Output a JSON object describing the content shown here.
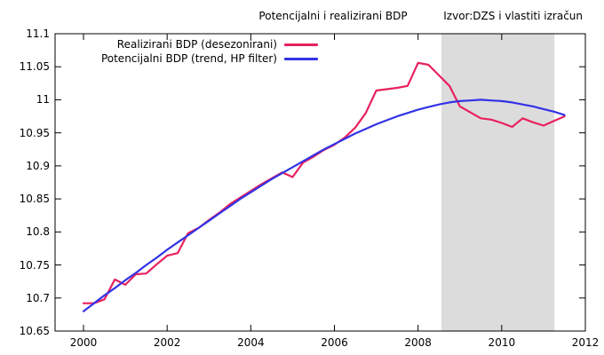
{
  "header": {
    "title": "Potencijalni i realizirani BDP",
    "source": "Izvor:DZS i vlastiti izračun"
  },
  "colors": {
    "background": "#ffffff",
    "axis": "#000000",
    "band": "#dcdcdc",
    "realized": "#e8215d",
    "potential": "#3232e6"
  },
  "chart_data": {
    "type": "line",
    "title": "Potencijalni i realizirani BDP",
    "source_note": "Izvor:DZS i vlastiti izračun",
    "xlabel": "",
    "ylabel": "",
    "grid": false,
    "legend_position": "inside-top-left",
    "xlim": [
      1999.32,
      2012
    ],
    "ylim": [
      10.65,
      11.1
    ],
    "x_ticks": [
      2000,
      2002,
      2004,
      2006,
      2008,
      2010,
      2012
    ],
    "x_tick_labels": [
      "2000",
      "2002",
      "2004",
      "2006",
      "2008",
      "2010",
      "2012"
    ],
    "y_ticks": [
      10.65,
      10.7,
      10.75,
      10.8,
      10.85,
      10.9,
      10.95,
      11,
      11.05,
      11.1
    ],
    "y_tick_labels": [
      "10.65",
      "10.7",
      "10.75",
      "10.8",
      "10.85",
      "10.9",
      "10.95",
      "11",
      "11.05",
      "11.1"
    ],
    "shaded_region": {
      "x_start": 2008.56,
      "x_end": 2011.26,
      "color": "#dcdcdc"
    },
    "x": [
      2000.0,
      2000.25,
      2000.5,
      2000.75,
      2001.0,
      2001.25,
      2001.5,
      2001.75,
      2002.0,
      2002.25,
      2002.5,
      2002.75,
      2003.0,
      2003.25,
      2003.5,
      2003.75,
      2004.0,
      2004.25,
      2004.5,
      2004.75,
      2005.0,
      2005.25,
      2005.5,
      2005.75,
      2006.0,
      2006.25,
      2006.5,
      2006.75,
      2007.0,
      2007.25,
      2007.5,
      2007.75,
      2008.0,
      2008.25,
      2008.5,
      2008.75,
      2009.0,
      2009.25,
      2009.5,
      2009.75,
      2010.0,
      2010.25,
      2010.5,
      2010.75,
      2011.0,
      2011.25,
      2011.5
    ],
    "series": [
      {
        "name": "Realizirani BDP (desezonirani)",
        "color": "#e8215d",
        "values": [
          10.692,
          10.692,
          10.698,
          10.728,
          10.72,
          10.736,
          10.737,
          10.751,
          10.764,
          10.768,
          10.798,
          10.806,
          10.818,
          10.829,
          10.842,
          10.852,
          10.862,
          10.872,
          10.881,
          10.89,
          10.883,
          10.905,
          10.914,
          10.924,
          10.932,
          10.943,
          10.958,
          10.98,
          11.014,
          11.016,
          11.018,
          11.021,
          11.056,
          11.053,
          11.037,
          11.021,
          10.99,
          10.981,
          10.972,
          10.97,
          10.965,
          10.959,
          10.972,
          10.966,
          10.961,
          10.968,
          10.975
        ]
      },
      {
        "name": "Potencijalni BDP (trend, HP filter)",
        "color": "#3232e6",
        "values": [
          10.68,
          10.692,
          10.704,
          10.715,
          10.727,
          10.738,
          10.75,
          10.761,
          10.773,
          10.784,
          10.795,
          10.806,
          10.817,
          10.828,
          10.839,
          10.85,
          10.86,
          10.87,
          10.88,
          10.889,
          10.898,
          10.907,
          10.916,
          10.925,
          10.933,
          10.941,
          10.949,
          10.956,
          10.963,
          10.969,
          10.975,
          10.98,
          10.985,
          10.989,
          10.993,
          10.996,
          10.998,
          10.999,
          11.0,
          10.999,
          10.998,
          10.996,
          10.993,
          10.99,
          10.986,
          10.982,
          10.977
        ]
      }
    ]
  }
}
